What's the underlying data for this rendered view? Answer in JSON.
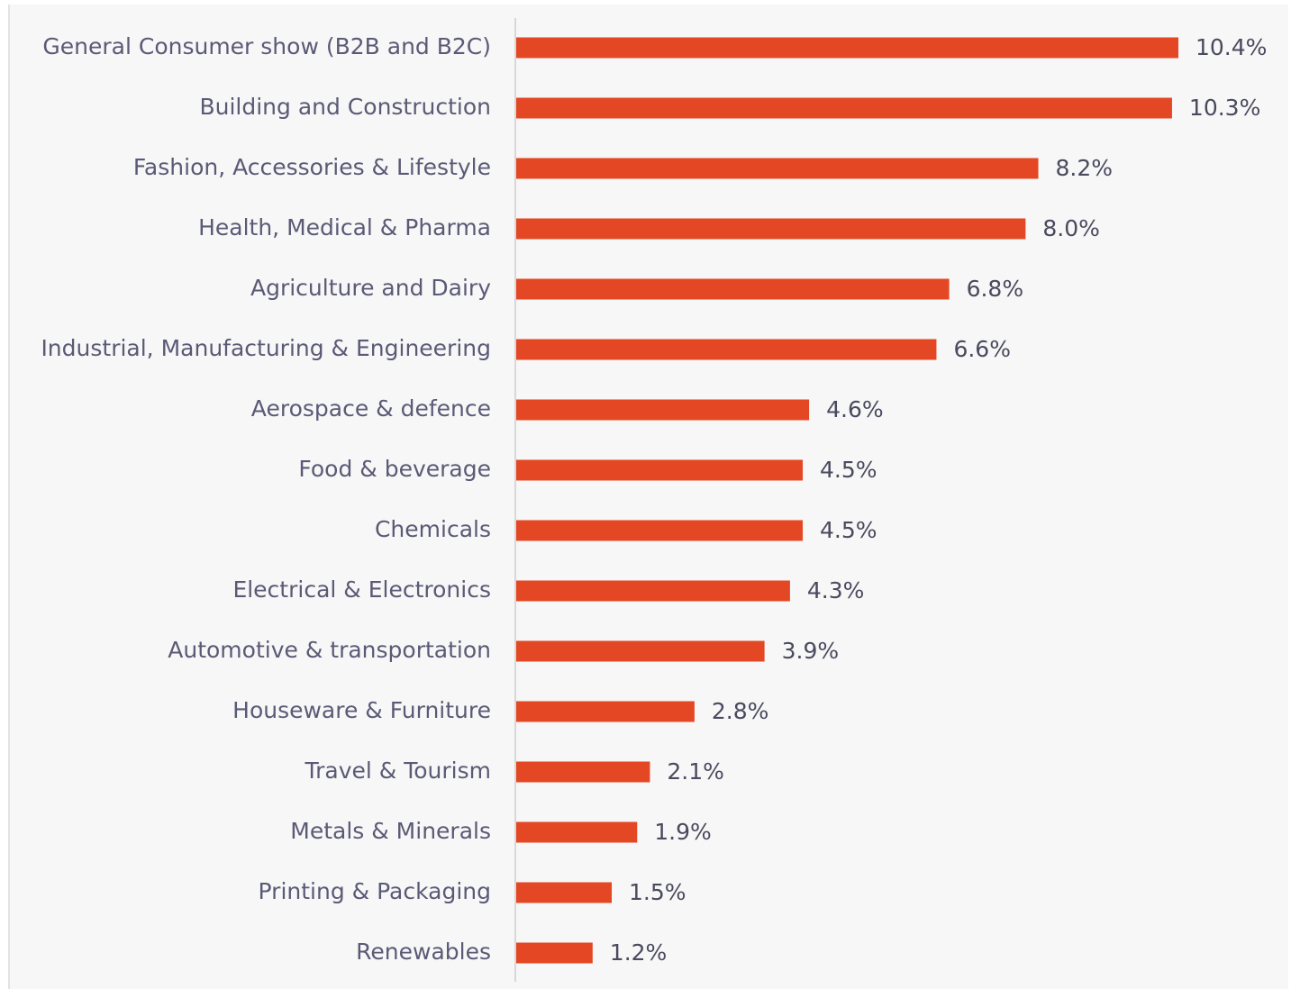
{
  "chart_data": {
    "type": "bar",
    "orientation": "horizontal",
    "color": "#e44723",
    "categories": [
      "General Consumer show (B2B and B2C)",
      "Building and Construction",
      "Fashion, Accessories & Lifestyle",
      "Health, Medical & Pharma",
      "Agriculture and Dairy",
      "Industrial, Manufacturing & Engineering",
      "Aerospace & defence",
      "Food & beverage",
      "Chemicals",
      "Electrical & Electronics",
      "Automotive & transportation",
      "Houseware & Furniture",
      "Travel & Tourism",
      "Metals & Minerals",
      "Printing & Packaging",
      "Renewables"
    ],
    "values": [
      10.4,
      10.3,
      8.2,
      8.0,
      6.8,
      6.6,
      4.6,
      4.5,
      4.5,
      4.3,
      3.9,
      2.8,
      2.1,
      1.9,
      1.5,
      1.2
    ],
    "value_labels": [
      "10.4%",
      "10.3%",
      "8.2%",
      "8.0%",
      "6.8%",
      "6.6%",
      "4.6%",
      "4.5%",
      "4.5%",
      "4.3%",
      "3.9%",
      "2.8%",
      "2.1%",
      "1.9%",
      "1.5%",
      "1.2%"
    ]
  }
}
